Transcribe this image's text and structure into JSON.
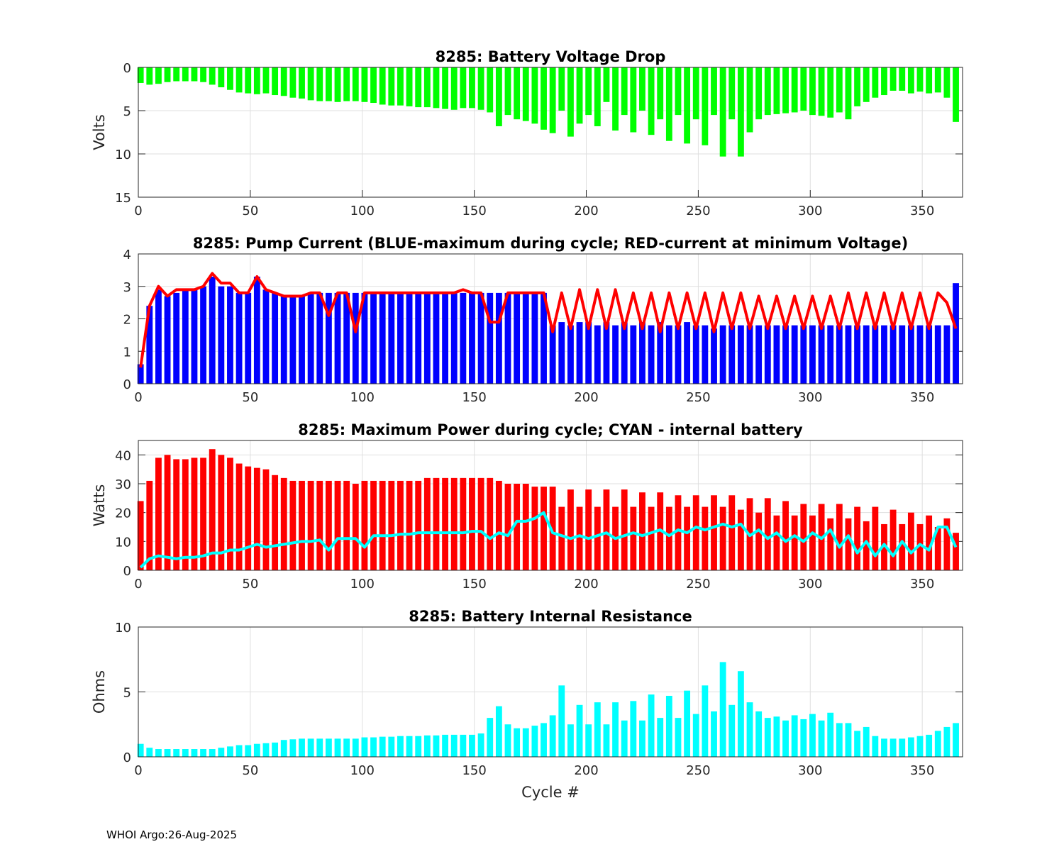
{
  "footer": "WHOI Argo:26-Aug-2025",
  "chart_data": [
    {
      "type": "bar",
      "title": "8285: Battery Voltage Drop",
      "xlabel": "",
      "ylabel": "Volts",
      "xlim": [
        0,
        368
      ],
      "ylim": [
        0,
        15
      ],
      "y_reversed": true,
      "grid": true,
      "xticks": [
        "0",
        "50",
        "100",
        "150",
        "200",
        "250",
        "300",
        "350"
      ],
      "yticks": [
        "0",
        "5",
        "10",
        "15"
      ],
      "cycles": {
        "start": 1,
        "step": 4,
        "count": 92
      },
      "series": [
        {
          "name": "Voltage drop",
          "kind": "bar",
          "color": "#00ff00",
          "values": [
            1.8,
            2.0,
            1.9,
            1.7,
            1.6,
            1.6,
            1.6,
            1.7,
            2.0,
            2.3,
            2.6,
            2.9,
            3.0,
            3.1,
            3.0,
            3.2,
            3.3,
            3.5,
            3.6,
            3.8,
            3.9,
            3.9,
            4.0,
            3.9,
            3.9,
            4.0,
            4.1,
            4.3,
            4.4,
            4.4,
            4.5,
            4.6,
            4.6,
            4.7,
            4.8,
            4.9,
            4.7,
            4.7,
            4.9,
            5.2,
            6.8,
            5.5,
            6.0,
            6.2,
            6.5,
            7.2,
            7.6,
            5.0,
            8.0,
            6.5,
            5.5,
            6.8,
            4.0,
            7.3,
            5.5,
            7.5,
            5.0,
            7.8,
            6.0,
            8.5,
            5.5,
            8.8,
            6.0,
            9.0,
            5.5,
            10.3,
            6.0,
            10.3,
            7.5,
            6.0,
            5.5,
            5.4,
            5.3,
            5.2,
            5.0,
            5.5,
            5.6,
            5.8,
            5.2,
            6.0,
            4.5,
            4.0,
            3.5,
            3.2,
            2.7,
            2.7,
            3.0,
            2.8,
            3.0,
            2.9,
            3.5,
            6.3
          ]
        }
      ]
    },
    {
      "type": "bar",
      "title": "8285: Pump Current (BLUE-maximum during cycle; RED-current at minimum Voltage)",
      "xlabel": "",
      "ylabel": "",
      "xlim": [
        0,
        368
      ],
      "ylim": [
        0,
        4
      ],
      "grid": true,
      "xticks": [
        "0",
        "50",
        "100",
        "150",
        "200",
        "250",
        "300",
        "350"
      ],
      "yticks": [
        "0",
        "1",
        "2",
        "3",
        "4"
      ],
      "cycles": {
        "start": 1,
        "step": 4,
        "count": 92
      },
      "series": [
        {
          "name": "maximum during cycle",
          "kind": "bar",
          "color": "#0000ff",
          "values": [
            0.6,
            2.4,
            2.9,
            2.7,
            2.8,
            2.9,
            2.9,
            3.0,
            3.3,
            3.0,
            3.0,
            2.8,
            2.8,
            3.3,
            2.9,
            2.8,
            2.7,
            2.7,
            2.7,
            2.8,
            2.8,
            2.8,
            2.8,
            2.8,
            2.8,
            2.8,
            2.8,
            2.8,
            2.8,
            2.8,
            2.8,
            2.8,
            2.8,
            2.8,
            2.8,
            2.8,
            2.8,
            2.8,
            2.8,
            2.8,
            2.8,
            2.8,
            2.8,
            2.8,
            2.8,
            2.8,
            1.8,
            1.9,
            1.8,
            1.9,
            1.9,
            1.8,
            1.9,
            1.8,
            1.9,
            1.8,
            1.9,
            1.8,
            1.9,
            1.8,
            1.8,
            1.9,
            1.8,
            1.8,
            1.7,
            1.8,
            1.8,
            1.8,
            1.8,
            1.8,
            1.8,
            1.8,
            1.8,
            1.8,
            1.8,
            1.8,
            1.8,
            1.8,
            1.8,
            1.8,
            1.8,
            1.8,
            1.8,
            1.8,
            1.8,
            1.8,
            1.8,
            1.8,
            1.8,
            1.8,
            1.8,
            3.1
          ]
        },
        {
          "name": "current at minimum Voltage",
          "kind": "line",
          "color": "#ff0000",
          "values": [
            0.5,
            2.4,
            3.0,
            2.7,
            2.9,
            2.9,
            2.9,
            3.0,
            3.4,
            3.1,
            3.1,
            2.8,
            2.8,
            3.3,
            2.9,
            2.8,
            2.7,
            2.7,
            2.7,
            2.8,
            2.8,
            2.1,
            2.8,
            2.8,
            1.6,
            2.8,
            2.8,
            2.8,
            2.8,
            2.8,
            2.8,
            2.8,
            2.8,
            2.8,
            2.8,
            2.8,
            2.9,
            2.8,
            2.8,
            1.9,
            1.9,
            2.8,
            2.8,
            2.8,
            2.8,
            2.8,
            1.6,
            2.8,
            1.7,
            2.9,
            1.7,
            2.9,
            1.7,
            2.9,
            1.7,
            2.8,
            1.7,
            2.8,
            1.6,
            2.8,
            1.7,
            2.8,
            1.7,
            2.8,
            1.6,
            2.8,
            1.7,
            2.8,
            1.7,
            2.7,
            1.7,
            2.7,
            1.7,
            2.7,
            1.7,
            2.7,
            1.7,
            2.7,
            1.7,
            2.8,
            1.7,
            2.8,
            1.7,
            2.8,
            1.7,
            2.8,
            1.7,
            2.8,
            1.7,
            2.8,
            2.5,
            1.7
          ]
        }
      ]
    },
    {
      "type": "bar",
      "title": "8285: Maximum Power during cycle; CYAN - internal battery",
      "xlabel": "",
      "ylabel": "Watts",
      "xlim": [
        0,
        368
      ],
      "ylim": [
        0,
        45
      ],
      "grid": true,
      "xticks": [
        "0",
        "50",
        "100",
        "150",
        "200",
        "250",
        "300",
        "350"
      ],
      "yticks": [
        "0",
        "10",
        "20",
        "30",
        "40"
      ],
      "cycles": {
        "start": 1,
        "step": 4,
        "count": 92
      },
      "series": [
        {
          "name": "Maximum power",
          "kind": "bar",
          "color": "#ff0000",
          "values": [
            24,
            31,
            39,
            40,
            38.5,
            38.5,
            39,
            39,
            42,
            40,
            39,
            37,
            36,
            35.5,
            35,
            33,
            32,
            31,
            31,
            31,
            31,
            31,
            31,
            31,
            30,
            31,
            31,
            31,
            31,
            31,
            31,
            31,
            32,
            32,
            32,
            32,
            32,
            32,
            32,
            32,
            31,
            30,
            30,
            30,
            29,
            29,
            29,
            22,
            28,
            22,
            28,
            22,
            28,
            22,
            28,
            22,
            27,
            22,
            27,
            22,
            26,
            22,
            26,
            22,
            26,
            22,
            26,
            21,
            25,
            20,
            25,
            19,
            24,
            19,
            23,
            19,
            23,
            18,
            23,
            18,
            22,
            17,
            22,
            16,
            21,
            16,
            20,
            16,
            19,
            15,
            18,
            13
          ]
        },
        {
          "name": "internal battery",
          "kind": "line",
          "color": "#00ffff",
          "values": [
            1,
            4,
            5,
            4.5,
            4,
            4.5,
            4.5,
            5,
            6,
            6,
            7,
            7,
            8,
            9,
            8,
            8.5,
            9,
            9.5,
            10,
            10,
            10.5,
            7,
            11,
            11,
            11,
            8,
            12,
            12,
            12,
            12.5,
            12.5,
            13,
            13,
            13,
            13,
            13,
            13,
            13.5,
            13.5,
            11,
            13,
            12,
            17,
            17,
            18,
            20,
            13,
            12,
            11,
            12,
            11,
            12,
            13,
            11,
            12,
            13,
            12,
            13,
            14,
            12,
            14,
            13,
            15,
            14,
            15,
            16,
            15,
            16,
            12,
            14,
            11,
            13,
            10,
            12,
            10,
            13,
            11,
            14,
            8,
            12,
            6,
            10,
            5,
            9,
            5,
            10,
            6,
            9,
            7,
            15,
            15,
            8
          ]
        }
      ]
    },
    {
      "type": "bar",
      "title": "8285: Battery Internal Resistance",
      "xlabel": "Cycle #",
      "ylabel": "Ohms",
      "xlim": [
        0,
        368
      ],
      "ylim": [
        0,
        10
      ],
      "grid": true,
      "xticks": [
        "0",
        "50",
        "100",
        "150",
        "200",
        "250",
        "300",
        "350"
      ],
      "yticks": [
        "0",
        "5",
        "10"
      ],
      "cycles": {
        "start": 1,
        "step": 4,
        "count": 92
      },
      "series": [
        {
          "name": "Internal resistance",
          "kind": "bar",
          "color": "#00ffff",
          "values": [
            1.0,
            0.7,
            0.6,
            0.6,
            0.6,
            0.6,
            0.6,
            0.6,
            0.6,
            0.7,
            0.8,
            0.9,
            0.9,
            1.0,
            1.05,
            1.1,
            1.3,
            1.35,
            1.4,
            1.4,
            1.4,
            1.4,
            1.4,
            1.4,
            1.4,
            1.5,
            1.5,
            1.55,
            1.55,
            1.6,
            1.6,
            1.6,
            1.65,
            1.65,
            1.7,
            1.7,
            1.7,
            1.7,
            1.8,
            3.0,
            3.9,
            2.5,
            2.2,
            2.2,
            2.4,
            2.6,
            3.2,
            5.5,
            2.5,
            4.0,
            2.5,
            4.2,
            2.5,
            4.2,
            2.8,
            4.3,
            2.8,
            4.8,
            3.0,
            4.7,
            3.0,
            5.1,
            3.3,
            5.5,
            3.5,
            7.3,
            4.0,
            6.6,
            4.2,
            3.5,
            3.0,
            3.1,
            2.8,
            3.2,
            2.9,
            3.3,
            2.8,
            3.4,
            2.6,
            2.6,
            2.0,
            2.3,
            1.6,
            1.4,
            1.4,
            1.4,
            1.5,
            1.6,
            1.7,
            2.0,
            2.3,
            2.6
          ]
        }
      ]
    }
  ]
}
